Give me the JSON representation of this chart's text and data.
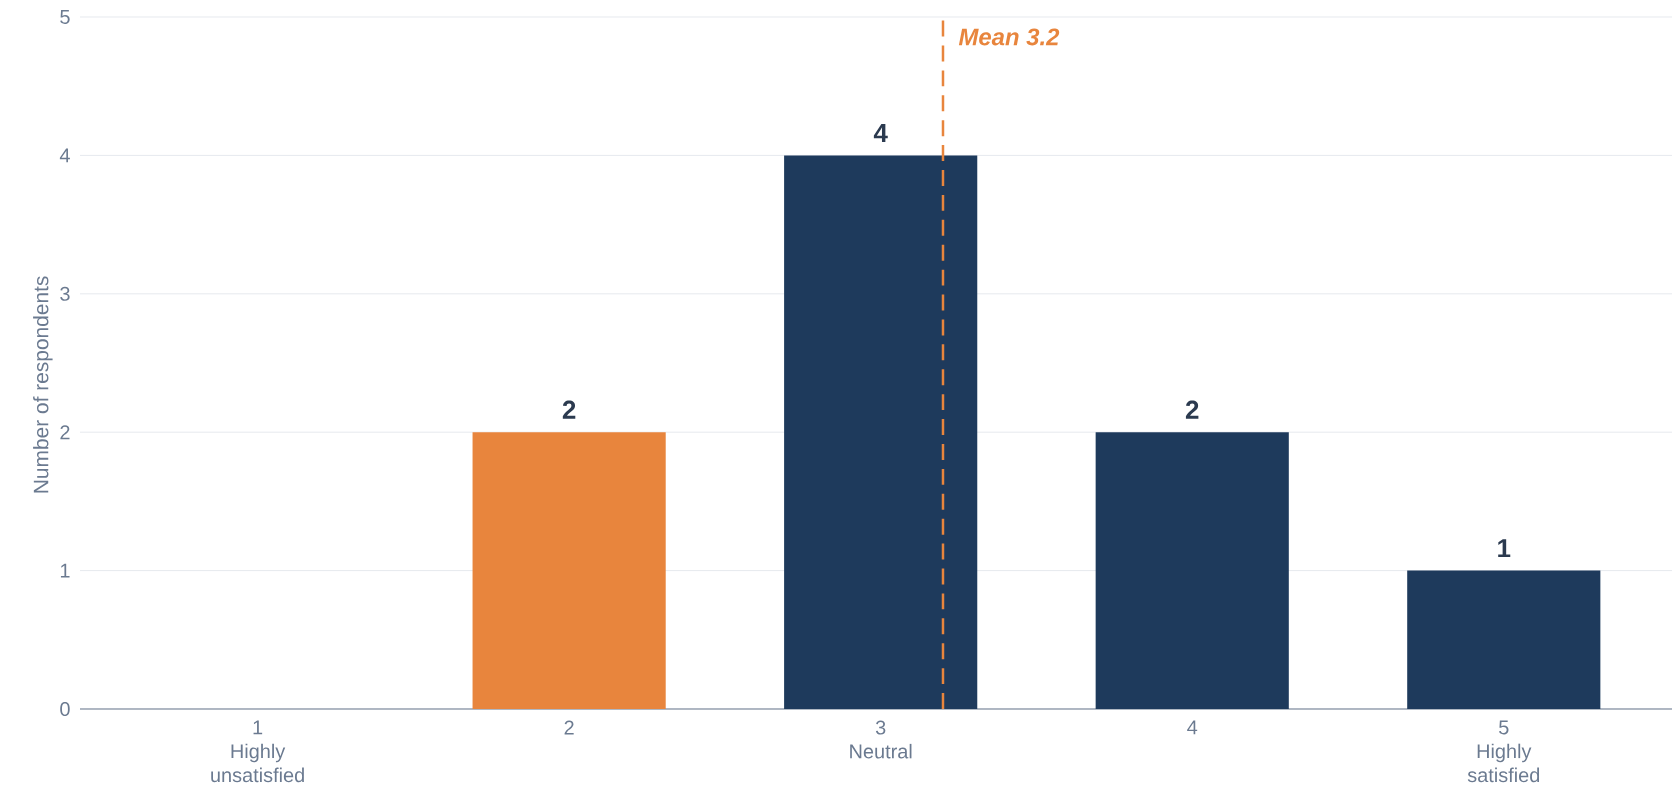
{
  "chart_data": {
    "type": "bar",
    "ylabel": "Number of respondents",
    "x": [
      1,
      2,
      3,
      4,
      5
    ],
    "values": [
      0,
      2,
      4,
      2,
      1
    ],
    "colors": [
      "#1e3a5c",
      "#e8853d",
      "#1e3a5c",
      "#1e3a5c",
      "#1e3a5c"
    ],
    "value_labels": [
      null,
      "2",
      "4",
      "2",
      "1"
    ],
    "xlim": [
      0.43,
      5.54
    ],
    "xticks": [
      {
        "value": 1,
        "label": "1 Highly unsatisfied"
      },
      2,
      {
        "value": 3,
        "label": "3 Neutral"
      },
      4,
      {
        "value": 5,
        "label": "5 Highly satisfied"
      }
    ],
    "ylim": [
      0,
      5
    ],
    "yticks": [
      0,
      1,
      2,
      3,
      4,
      5
    ],
    "grid": "y",
    "ref_lines": [
      {
        "axis": "x",
        "value": 3.2,
        "label": "Mean 3.2",
        "color": "#e8853d",
        "line_style": "dashed"
      }
    ]
  }
}
